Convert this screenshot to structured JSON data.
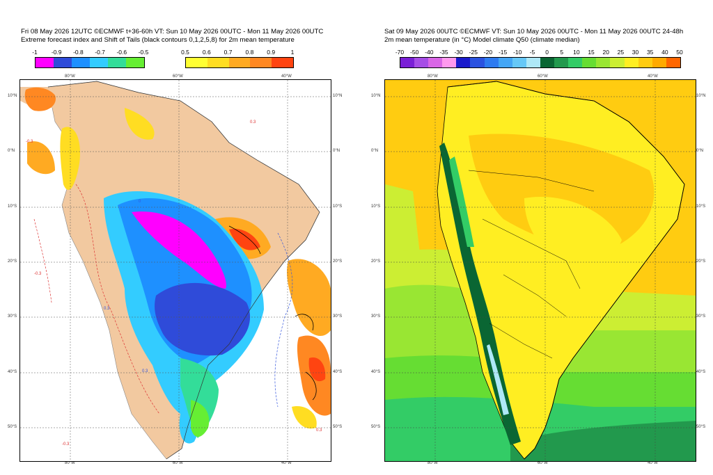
{
  "left_panel": {
    "title_line1": "Fri 08 May 2026 12UTC ©ECMWF t+36-60h  VT: Sun 10 May 2026 00UTC - Mon 11 May 2026 00UTC",
    "title_line2": "Extreme forecast index and Shift of Tails (black contours 0,1,2,5,8) for 2m mean temperature",
    "cold_bar": {
      "labels": [
        "-1",
        "-0.9",
        "-0.8",
        "-0.7",
        "-0.6",
        "-0.5"
      ],
      "colors": [
        "#ff00ff",
        "#2f4bd9",
        "#1e90ff",
        "#33ccff",
        "#33dd99",
        "#66ee33"
      ]
    },
    "warm_bar": {
      "labels": [
        "0.5",
        "0.6",
        "0.7",
        "0.8",
        "0.9",
        "1"
      ],
      "colors": [
        "#ffff33",
        "#ffdd22",
        "#ffaa22",
        "#ff8822",
        "#ff4411"
      ]
    },
    "lon_labels": [
      "80°W",
      "60°W",
      "40°W"
    ],
    "lat_labels": [
      "10°N",
      "0°N",
      "10°S",
      "20°S",
      "30°S",
      "40°S",
      "50°S"
    ],
    "contour_labels": [
      "0.3",
      "-0.3",
      "0",
      "0.3",
      "-0.3",
      "0.3",
      "-0.3",
      "0.3"
    ]
  },
  "right_panel": {
    "title_line1": "Sat 09 May 2026 00UTC ©ECMWF VT: Sun 10 May 2026 00UTC - Mon 11 May 2026 00UTC  24-48h",
    "title_line2": "2m mean temperature (in °C)  Model climate Q50 (climate median)",
    "bar": {
      "labels": [
        "-70",
        "-50",
        "-40",
        "-35",
        "-30",
        "-25",
        "-20",
        "-15",
        "-10",
        "-5",
        "0",
        "5",
        "10",
        "15",
        "20",
        "25",
        "30",
        "35",
        "40",
        "50"
      ],
      "colors": [
        "#7a1fd6",
        "#a64de6",
        "#d966e6",
        "#ff99ee",
        "#1a1acc",
        "#2a52e0",
        "#2e7bf0",
        "#44a6f5",
        "#66c8f7",
        "#aee8f7",
        "#0a6633",
        "#22994d",
        "#33cc66",
        "#66dd33",
        "#99e633",
        "#ccee33",
        "#ffee22",
        "#ffcc11",
        "#ffaa00",
        "#ff6600"
      ]
    },
    "lon_labels": [
      "80°W",
      "60°W",
      "40°W"
    ],
    "lat_labels": [
      "10°N",
      "0°N",
      "10°S",
      "20°S",
      "30°S",
      "40°S",
      "50°S"
    ]
  },
  "colors": {
    "land_beige": "#f2c9a0",
    "frame": "#000000"
  }
}
